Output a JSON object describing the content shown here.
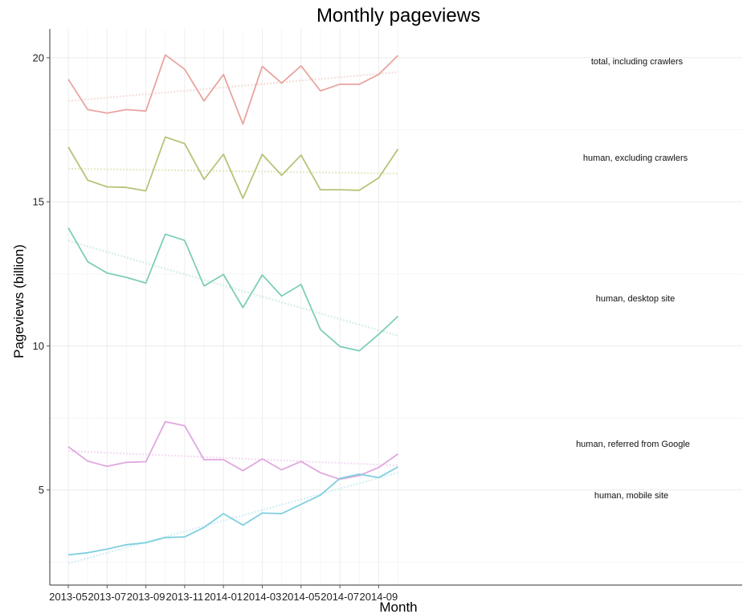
{
  "chart_data": {
    "type": "line",
    "title": "Monthly pageviews",
    "xlabel": "Month",
    "ylabel": "Pageviews (billion)",
    "x_tick_labels": [
      "2013-05",
      "2013-07",
      "2013-09",
      "2013-11",
      "2014-01",
      "2014-03",
      "2014-05",
      "2014-07",
      "2014-09"
    ],
    "y_ticks": [
      5,
      10,
      15,
      20
    ],
    "ylim": [
      1.7,
      21.0
    ],
    "grid": true,
    "x": [
      "2013-05",
      "2013-06",
      "2013-07",
      "2013-08",
      "2013-09",
      "2013-10",
      "2013-11",
      "2013-12",
      "2014-01",
      "2014-02",
      "2014-03",
      "2014-04",
      "2014-05",
      "2014-06",
      "2014-07",
      "2014-08",
      "2014-09",
      "2014-10"
    ],
    "series": [
      {
        "name": "total, including crawlers",
        "color": "#e8a5a0",
        "trend_color": "#f6dedc",
        "values": [
          19.25,
          18.2,
          18.08,
          18.2,
          18.15,
          20.1,
          19.6,
          18.5,
          19.42,
          17.7,
          19.7,
          19.12,
          19.72,
          18.85,
          19.08,
          19.08,
          19.42,
          20.08
        ],
        "trend": [
          18.5,
          19.5
        ]
      },
      {
        "name": "human, excluding crawlers",
        "color": "#b9c277",
        "trend_color": "#e6eac7",
        "values": [
          16.9,
          15.75,
          15.52,
          15.5,
          15.38,
          17.25,
          17.02,
          15.78,
          16.65,
          15.12,
          16.65,
          15.92,
          16.62,
          15.42,
          15.42,
          15.4,
          15.83,
          16.83
        ],
        "trend": [
          16.15,
          15.98
        ]
      },
      {
        "name": "human, desktop site",
        "color": "#7dcdb9",
        "trend_color": "#d4eee7",
        "values": [
          14.1,
          12.92,
          12.53,
          12.38,
          12.18,
          13.88,
          13.66,
          12.08,
          12.48,
          11.33,
          12.46,
          11.73,
          12.13,
          10.57,
          9.98,
          9.83,
          10.4,
          11.03
        ],
        "trend": [
          13.65,
          10.35
        ]
      },
      {
        "name": "human, referred from Google",
        "color": "#e0a8df",
        "trend_color": "#f3dcf3",
        "values": [
          6.5,
          6.0,
          5.82,
          5.96,
          5.98,
          7.37,
          7.23,
          6.05,
          6.05,
          5.67,
          6.08,
          5.7,
          5.99,
          5.6,
          5.37,
          5.5,
          5.78,
          6.25
        ],
        "trend": [
          6.35,
          5.85
        ]
      },
      {
        "name": "human, mobile site",
        "color": "#7fcfe0",
        "trend_color": "#d2eef4",
        "values": [
          2.75,
          2.82,
          2.95,
          3.1,
          3.17,
          3.35,
          3.37,
          3.7,
          4.18,
          3.78,
          4.2,
          4.18,
          4.5,
          4.82,
          5.4,
          5.55,
          5.43,
          5.8
        ],
        "trend": [
          2.45,
          5.6
        ]
      }
    ]
  }
}
